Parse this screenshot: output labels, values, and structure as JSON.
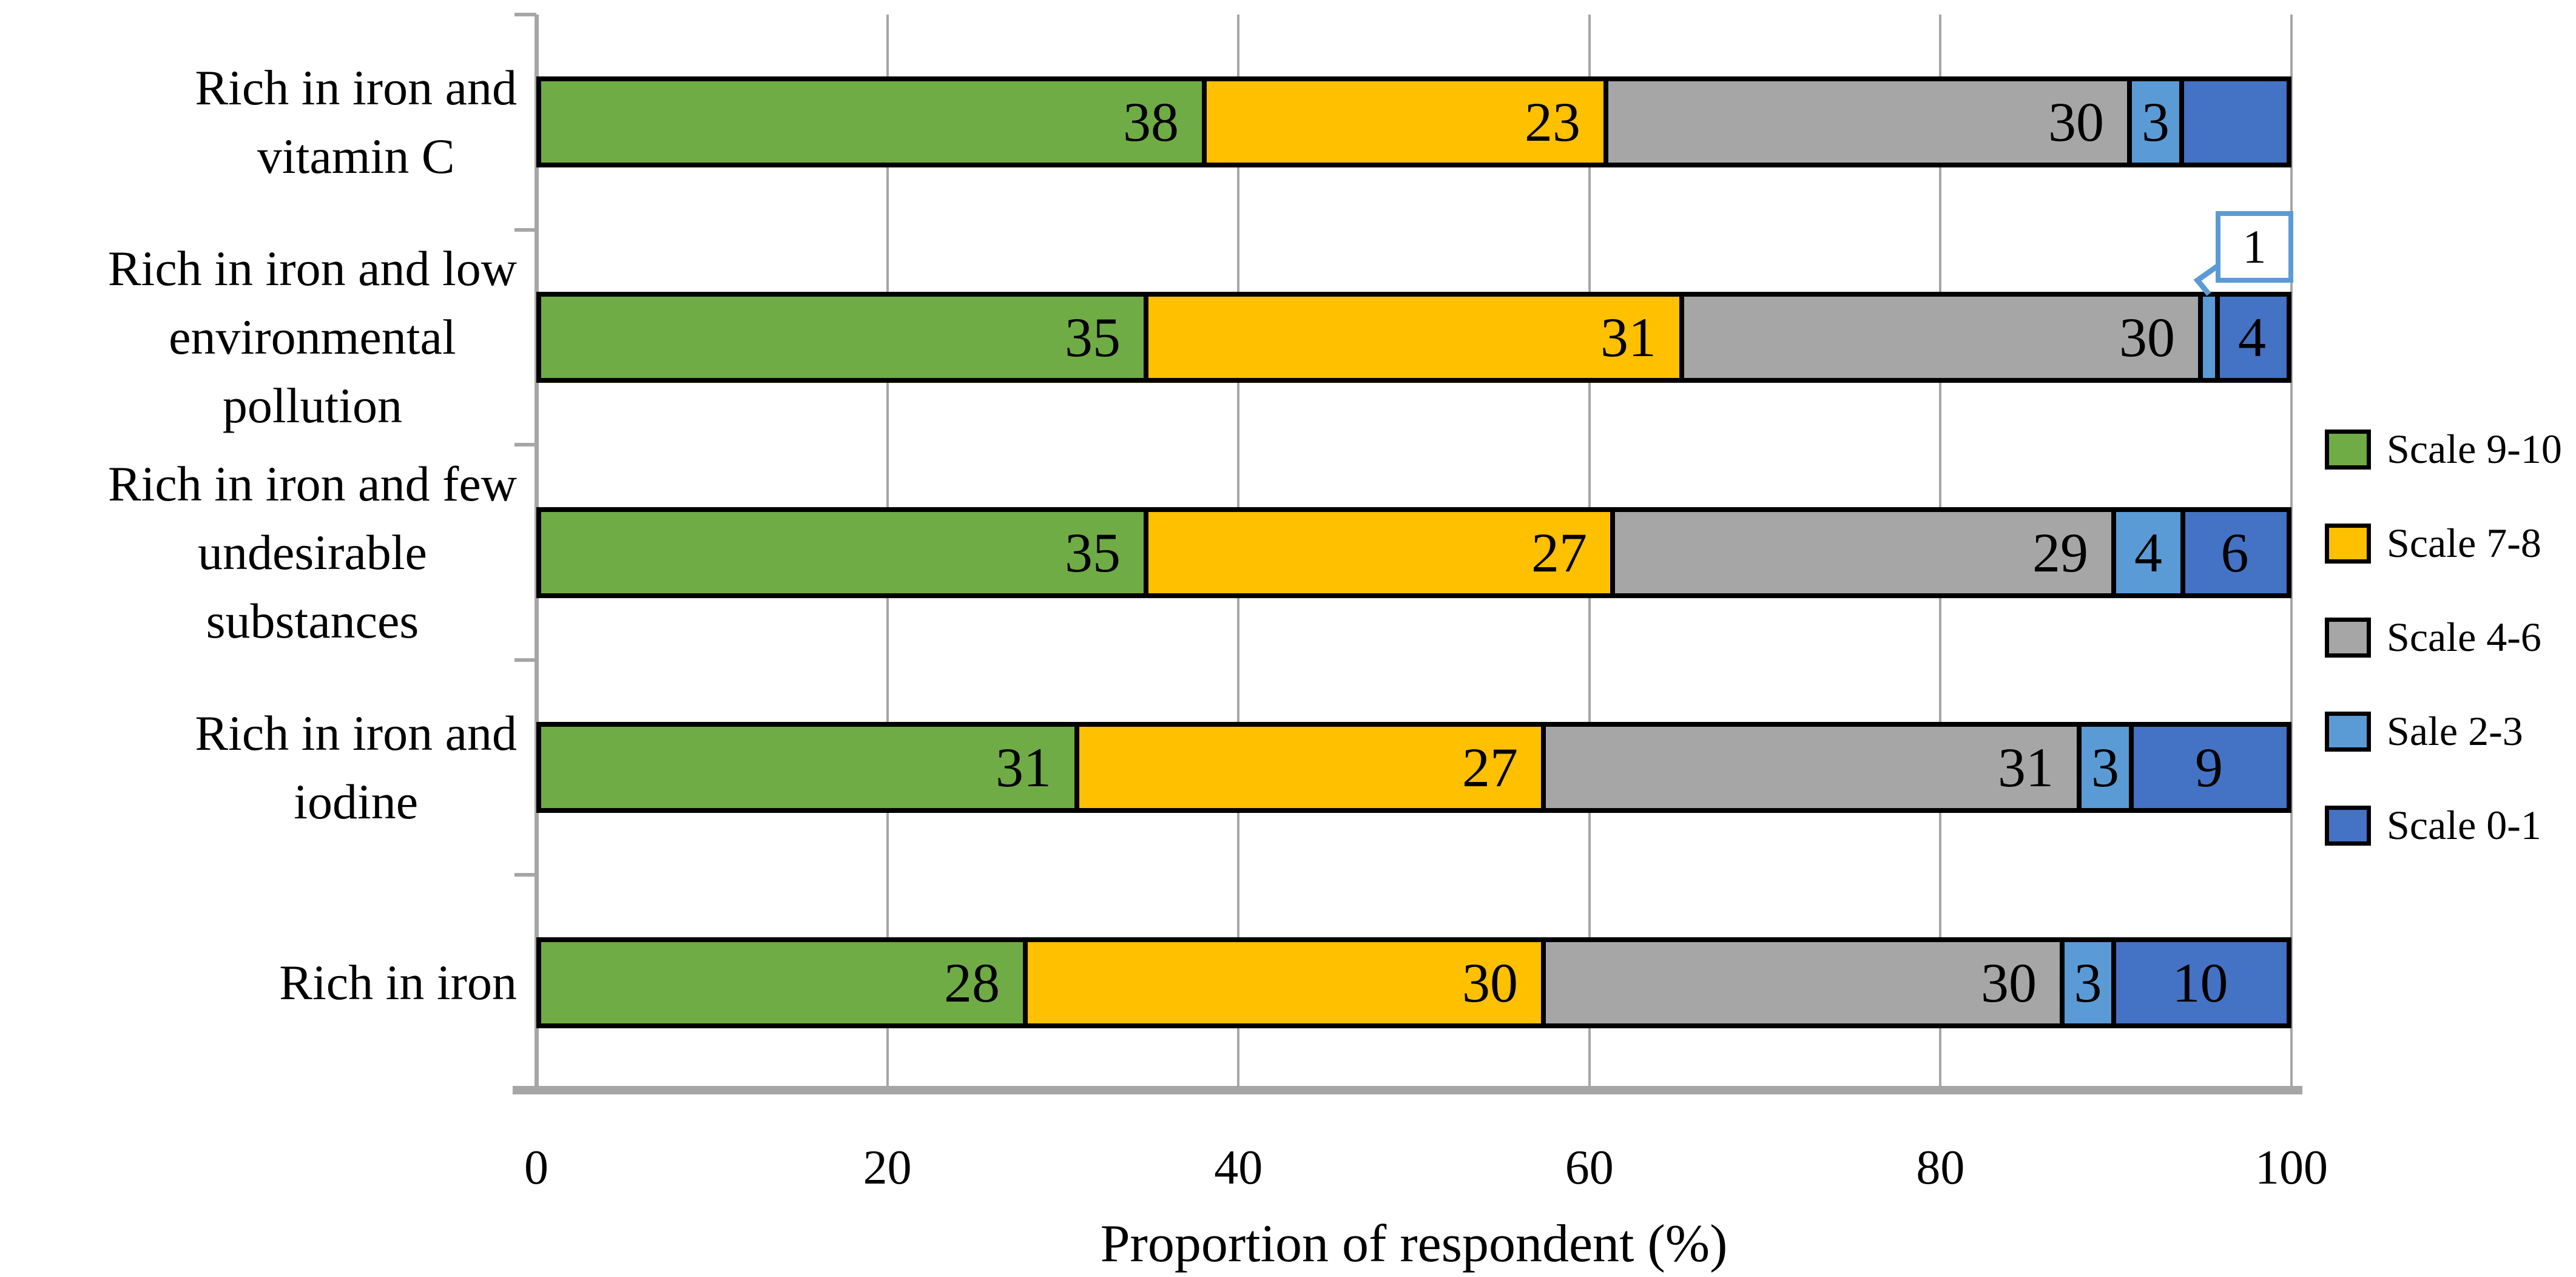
{
  "figure": {
    "background": "#ffffff",
    "text_color": "#000000",
    "gridline_color": "#a6a6a6",
    "axis_color": "#a6a6a6",
    "bar_border_color": "#000000"
  },
  "chart_data": {
    "type": "bar",
    "variant": "horizontal-stacked-100-percent",
    "title": "",
    "xlabel": "Proportion of respondent (%)",
    "ylabel": "",
    "xlim": [
      0,
      100
    ],
    "x_ticks": [
      "0",
      "20",
      "40",
      "60",
      "80",
      "100"
    ],
    "grid": "vertical",
    "legend_position": "right",
    "categories": [
      "Rich in iron and\nvitamin C",
      "Rich in iron and low\nenvironmental\npollution",
      "Rich in iron and few\nundesirable\nsubstances",
      "Rich in iron and\niodine",
      "Rich in iron"
    ],
    "series": [
      {
        "name": "Scale 9-10",
        "color": "#6fac46",
        "values": [
          38,
          35,
          35,
          31,
          28
        ]
      },
      {
        "name": "Scale 7-8",
        "color": "#ffc000",
        "values": [
          23,
          31,
          27,
          27,
          30
        ]
      },
      {
        "name": "Scale 4-6",
        "color": "#a6a6a6",
        "values": [
          30,
          30,
          29,
          31,
          30
        ]
      },
      {
        "name": "Sale 2-3",
        "color": "#5b9bd5",
        "values": [
          3,
          1,
          4,
          3,
          3
        ]
      },
      {
        "name": "Scale 0-1",
        "color": "#4472c4",
        "values": [
          6,
          4,
          6,
          9,
          10
        ]
      }
    ],
    "data_labels": [
      [
        "38",
        "23",
        "30",
        "3",
        ""
      ],
      [
        "35",
        "31",
        "30",
        "",
        "4"
      ],
      [
        "35",
        "27",
        "29",
        "4",
        "6"
      ],
      [
        "31",
        "27",
        "31",
        "3",
        "9"
      ],
      [
        "28",
        "30",
        "30",
        "3",
        "10"
      ]
    ],
    "callout": {
      "text": "1",
      "category_index": 1,
      "series_index": 3,
      "border_color": "#5b9bd5"
    }
  }
}
